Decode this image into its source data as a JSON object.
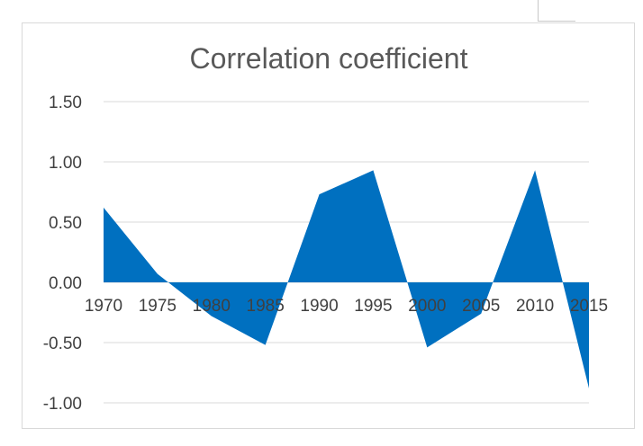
{
  "chart_data": {
    "type": "area",
    "title": "Correlation coefficient",
    "x": [
      1970,
      1975,
      1980,
      1985,
      1990,
      1995,
      2000,
      2005,
      2010,
      2015
    ],
    "x_tick_labels": [
      "1970",
      "1975",
      "1980",
      "1985",
      "1990",
      "1995",
      "2000",
      "2005",
      "2010",
      "2015"
    ],
    "series": [
      {
        "values": [
          0.62,
          0.07,
          -0.28,
          -0.52,
          0.73,
          0.93,
          -0.54,
          -0.26,
          0.93,
          -0.88
        ]
      }
    ],
    "y_tick_labels": [
      "1.50",
      "1.00",
      "0.50",
      "0.00",
      "-0.50",
      "-1.00"
    ],
    "ylim": [
      -1.0,
      1.5
    ],
    "grid": true,
    "colors": {
      "area": "#0070C0",
      "grid": "#d9d9d9",
      "title": "#595959",
      "ticks": "#404040"
    }
  }
}
